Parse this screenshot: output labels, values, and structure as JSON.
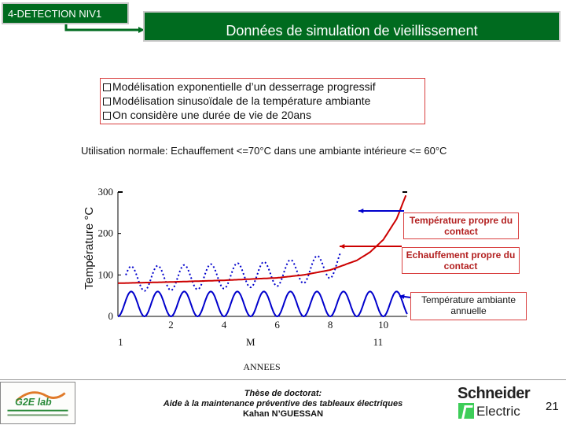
{
  "header": {
    "section_tag": "4-DETECTION NIV1",
    "title": "Données de simulation de vieillissement"
  },
  "bullets": [
    "Modélisation exponentielle d’un desserrage progressif",
    "Modélisation sinusoïdale de la température ambiante",
    "On considère une durée de vie de 20ans"
  ],
  "subtitle": "Utilisation normale: Echauffement <=70°C dans une ambiante intérieure <= 60°C",
  "chart_data": {
    "type": "line",
    "ylabel": "Température °C",
    "xlabel": "ANNEES",
    "ylim": [
      0,
      300
    ],
    "xlim": [
      0,
      10.9
    ],
    "yticks": [
      "0",
      "100",
      "200",
      "300"
    ],
    "xticks": [
      "2",
      "4",
      "6",
      "8",
      "10"
    ],
    "xticks_secondary": [
      "1",
      "M",
      "11"
    ],
    "series": [
      {
        "name": "Température ambiante annuelle",
        "color": "#0000cc",
        "style": "solid",
        "model": "sinusoidal",
        "mean": 30,
        "amplitude": 30,
        "period_years": 1
      },
      {
        "name": "Echauffement propre du contact",
        "color": "#cc0000",
        "style": "solid",
        "model": "exponential",
        "x": [
          0,
          2,
          4,
          6,
          7,
          8,
          9,
          9.5,
          10,
          10.5,
          10.9
        ],
        "values": [
          80,
          83,
          87,
          93,
          100,
          112,
          135,
          155,
          185,
          235,
          300
        ]
      },
      {
        "name": "Température propre du contact",
        "color": "#0000cc",
        "style": "dotted",
        "model": "sum",
        "x_end": 8.4
      }
    ],
    "annotations": [
      {
        "text": "Température propre du contact",
        "color": "#b32020"
      },
      {
        "text": "Echauffement propre du contact",
        "color": "#b32020"
      },
      {
        "text": "Température ambiante annuelle",
        "color": "#111111"
      }
    ]
  },
  "footer": {
    "logo_left": "G2E lab",
    "thesis_line1": "Thèse de doctorat:",
    "thesis_line2": "Aide à la maintenance préventive des tableaux électriques",
    "thesis_line3": "Kahan N’GUESSAN",
    "logo_right_line1": "Schneider",
    "logo_right_line2": "Electric",
    "page_number": "21"
  },
  "colors": {
    "header_green": "#006b1f",
    "accent_red": "#d94040",
    "sine_blue": "#0000cc",
    "curve_red": "#cc0000"
  }
}
